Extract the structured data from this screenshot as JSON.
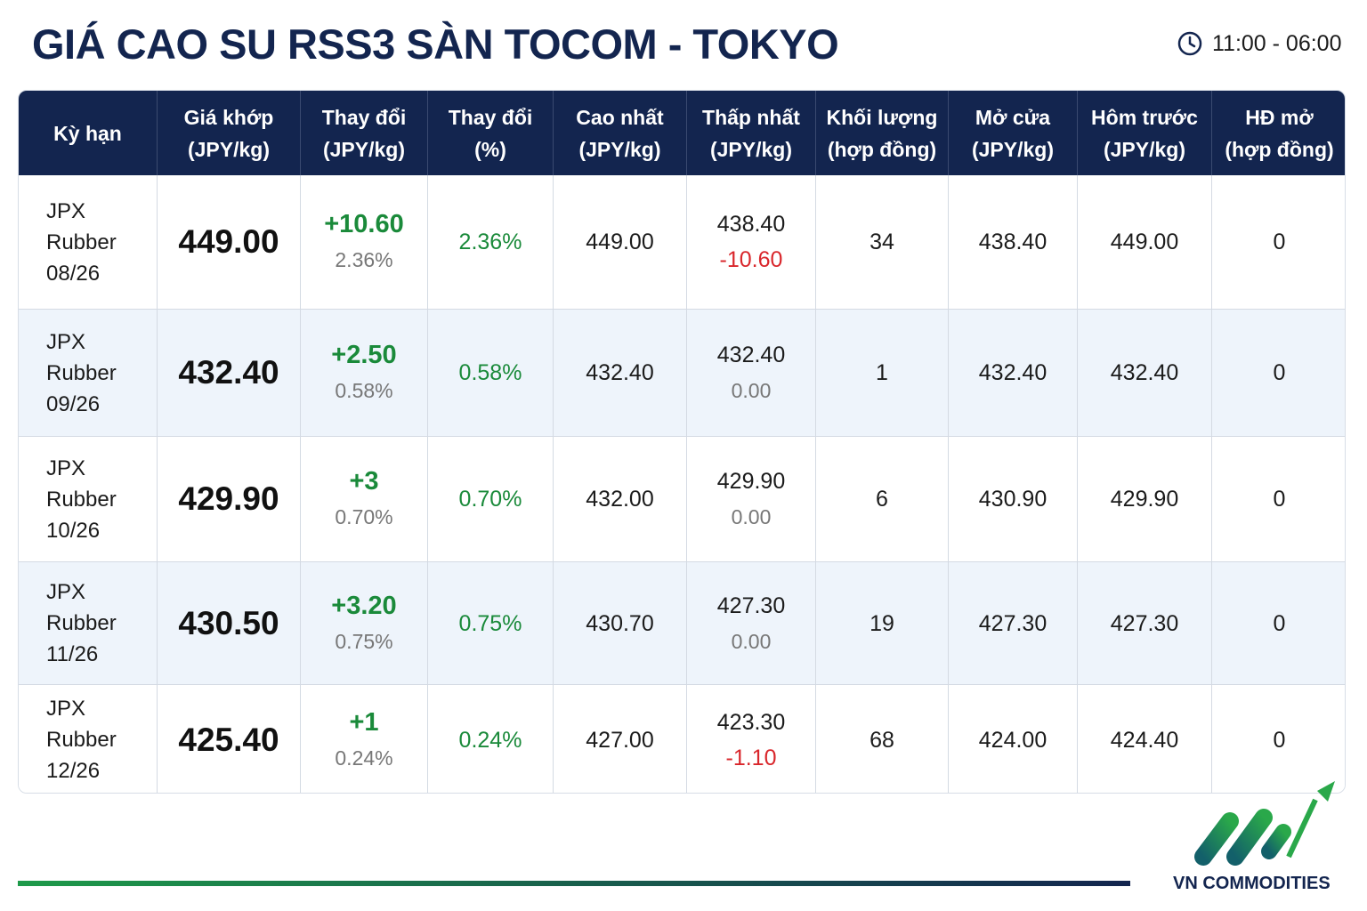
{
  "header": {
    "title": "GIÁ CAO SU RSS3 SÀN TOCOM - TOKYO",
    "time": "11:00 - 06:00"
  },
  "table": {
    "columns": [
      [
        "Kỳ hạn"
      ],
      [
        "Giá khớp",
        "(JPY/kg)"
      ],
      [
        "Thay đổi",
        "(JPY/kg)"
      ],
      [
        "Thay đổi",
        "(%)"
      ],
      [
        "Cao nhất",
        "(JPY/kg)"
      ],
      [
        "Thấp nhất",
        "(JPY/kg)"
      ],
      [
        "Khối lượng",
        "(hợp đồng)"
      ],
      [
        "Mở cửa",
        "(JPY/kg)"
      ],
      [
        "Hôm trước",
        "(JPY/kg)"
      ],
      [
        "HĐ mở",
        "(hợp đồng)"
      ]
    ],
    "rows": [
      {
        "contract": [
          "JPX",
          "Rubber",
          "08/26"
        ],
        "price": "449.00",
        "change": [
          "+10.60",
          "2.36%"
        ],
        "change_pct": "2.36%",
        "high": "449.00",
        "low": [
          "438.40",
          "-10.60"
        ],
        "volume": "34",
        "open": "438.40",
        "prev_close": "449.00",
        "open_interest": "0"
      },
      {
        "contract": [
          "JPX",
          "Rubber",
          "09/26"
        ],
        "price": "432.40",
        "change": [
          "+2.50",
          "0.58%"
        ],
        "change_pct": "0.58%",
        "high": "432.40",
        "low": [
          "432.40",
          "0.00"
        ],
        "volume": "1",
        "open": "432.40",
        "prev_close": "432.40",
        "open_interest": "0"
      },
      {
        "contract": [
          "JPX",
          "Rubber",
          "10/26"
        ],
        "price": "429.90",
        "change": [
          "+3",
          "0.70%"
        ],
        "change_pct": "0.70%",
        "high": "432.00",
        "low": [
          "429.90",
          "0.00"
        ],
        "volume": "6",
        "open": "430.90",
        "prev_close": "429.90",
        "open_interest": "0"
      },
      {
        "contract": [
          "JPX",
          "Rubber",
          "11/26"
        ],
        "price": "430.50",
        "change": [
          "+3.20",
          "0.75%"
        ],
        "change_pct": "0.75%",
        "high": "430.70",
        "low": [
          "427.30",
          "0.00"
        ],
        "volume": "19",
        "open": "427.30",
        "prev_close": "427.30",
        "open_interest": "0"
      },
      {
        "contract": [
          "JPX",
          "Rubber",
          "12/26"
        ],
        "price": "425.40",
        "change": [
          "+1",
          "0.24%"
        ],
        "change_pct": "0.24%",
        "high": "427.00",
        "low": [
          "423.30",
          "-1.10"
        ],
        "volume": "68",
        "open": "424.00",
        "prev_close": "424.40",
        "open_interest": "0"
      }
    ]
  },
  "footer": {
    "brand": "VN COMMODITIES"
  }
}
